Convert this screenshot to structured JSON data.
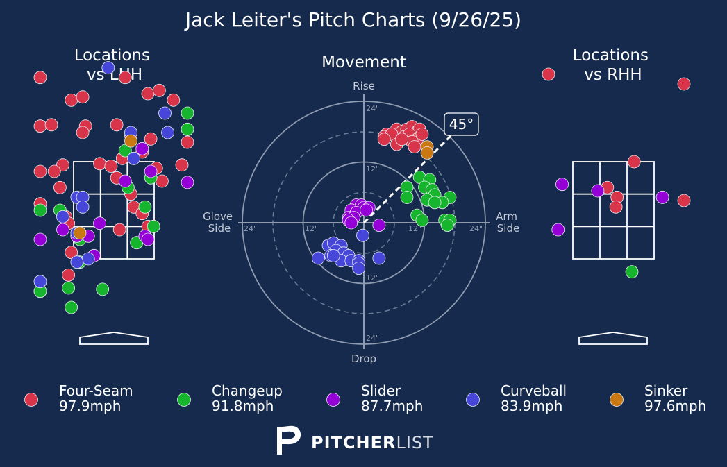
{
  "title": "Jack Leiter's Pitch Charts (9/26/25)",
  "colors": {
    "background": "#152a4c",
    "four_seam": "#d8344a",
    "changeup": "#16b52d",
    "slider": "#9400d6",
    "curveball": "#4646d8",
    "sinker": "#c97812"
  },
  "chart_data": [
    {
      "type": "scatter",
      "title": "Locations\nvs LHH",
      "points": [
        {
          "pitch": "Four-Seam",
          "x": -1.4,
          "y": 4.3
        },
        {
          "pitch": "Four-Seam",
          "x": -0.75,
          "y": 3.95
        },
        {
          "pitch": "Four-Seam",
          "x": -0.55,
          "y": 4.0
        },
        {
          "pitch": "Four-Seam",
          "x": 0.2,
          "y": 4.3
        },
        {
          "pitch": "Four-Seam",
          "x": 0.6,
          "y": 4.05
        },
        {
          "pitch": "Four-Seam",
          "x": 0.8,
          "y": 4.1
        },
        {
          "pitch": "Four-Seam",
          "x": 1.05,
          "y": 3.95
        },
        {
          "pitch": "Four-Seam",
          "x": -1.8,
          "y": 3.55
        },
        {
          "pitch": "Four-Seam",
          "x": -1.1,
          "y": 3.57
        },
        {
          "pitch": "Four-Seam",
          "x": -0.5,
          "y": 3.55
        },
        {
          "pitch": "Four-Seam",
          "x": 0.05,
          "y": 3.57
        },
        {
          "pitch": "Four-Seam",
          "x": 0.3,
          "y": 3.4
        },
        {
          "pitch": "Four-Seam",
          "x": 0.65,
          "y": 3.35
        },
        {
          "pitch": "Four-Seam",
          "x": 1.45,
          "y": 3.3
        },
        {
          "pitch": "Four-Seam",
          "x": -0.55,
          "y": 3.45
        },
        {
          "pitch": "Four-Seam",
          "x": 0.15,
          "y": 3.05
        },
        {
          "pitch": "Four-Seam",
          "x": -0.9,
          "y": 2.95
        },
        {
          "pitch": "Four-Seam",
          "x": -0.25,
          "y": 2.97
        },
        {
          "pitch": "Four-Seam",
          "x": -0.05,
          "y": 2.93
        },
        {
          "pitch": "Four-Seam",
          "x": 0.5,
          "y": 3.15
        },
        {
          "pitch": "Four-Seam",
          "x": 1.2,
          "y": 2.95
        },
        {
          "pitch": "Four-Seam",
          "x": -1.3,
          "y": 2.85
        },
        {
          "pitch": "Four-Seam",
          "x": -1.05,
          "y": 2.85
        },
        {
          "pitch": "Four-Seam",
          "x": 0.05,
          "y": 2.75
        },
        {
          "pitch": "Four-Seam",
          "x": 0.75,
          "y": 2.9
        },
        {
          "pitch": "Four-Seam",
          "x": 0.85,
          "y": 2.7
        },
        {
          "pitch": "Four-Seam",
          "x": -0.95,
          "y": 2.6
        },
        {
          "pitch": "Four-Seam",
          "x": 0.3,
          "y": 2.5
        },
        {
          "pitch": "Four-Seam",
          "x": -2.05,
          "y": 2.35
        },
        {
          "pitch": "Four-Seam",
          "x": 0.35,
          "y": 2.3
        },
        {
          "pitch": "Four-Seam",
          "x": 0.5,
          "y": 2.2
        },
        {
          "pitch": "Four-Seam",
          "x": 0.6,
          "y": 2.0
        },
        {
          "pitch": "Four-Seam",
          "x": -0.85,
          "y": 2.15
        },
        {
          "pitch": "Four-Seam",
          "x": -0.8,
          "y": 2.05
        },
        {
          "pitch": "Four-Seam",
          "x": 0.1,
          "y": 1.95
        },
        {
          "pitch": "Four-Seam",
          "x": -0.75,
          "y": 1.6
        },
        {
          "pitch": "Four-Seam",
          "x": -0.8,
          "y": 1.25
        },
        {
          "pitch": "Changeup",
          "x": 0.2,
          "y": 3.17
        },
        {
          "pitch": "Changeup",
          "x": 1.85,
          "y": 3.75
        },
        {
          "pitch": "Changeup",
          "x": 1.8,
          "y": 3.5
        },
        {
          "pitch": "Changeup",
          "x": 0.65,
          "y": 2.75
        },
        {
          "pitch": "Changeup",
          "x": 0.25,
          "y": 2.6
        },
        {
          "pitch": "Changeup",
          "x": -1.7,
          "y": 2.25
        },
        {
          "pitch": "Changeup",
          "x": -0.95,
          "y": 2.25
        },
        {
          "pitch": "Changeup",
          "x": 0.55,
          "y": 2.3
        },
        {
          "pitch": "Changeup",
          "x": 0.7,
          "y": 2.0
        },
        {
          "pitch": "Changeup",
          "x": -0.6,
          "y": 1.8
        },
        {
          "pitch": "Changeup",
          "x": 0.4,
          "y": 1.75
        },
        {
          "pitch": "Changeup",
          "x": -0.6,
          "y": 1.45
        },
        {
          "pitch": "Changeup",
          "x": -1.55,
          "y": 1.0
        },
        {
          "pitch": "Changeup",
          "x": -1.3,
          "y": 1.0
        },
        {
          "pitch": "Changeup",
          "x": -0.8,
          "y": 1.05
        },
        {
          "pitch": "Changeup",
          "x": -0.2,
          "y": 1.03
        },
        {
          "pitch": "Changeup",
          "x": -0.75,
          "y": 0.75
        },
        {
          "pitch": "Slider",
          "x": 0.5,
          "y": 3.2
        },
        {
          "pitch": "Slider",
          "x": 0.65,
          "y": 2.85
        },
        {
          "pitch": "Slider",
          "x": 1.35,
          "y": 2.68
        },
        {
          "pitch": "Slider",
          "x": 0.2,
          "y": 2.7
        },
        {
          "pitch": "Slider",
          "x": -0.25,
          "y": 2.05
        },
        {
          "pitch": "Slider",
          "x": -0.9,
          "y": 1.95
        },
        {
          "pitch": "Slider",
          "x": -0.45,
          "y": 1.85
        },
        {
          "pitch": "Slider",
          "x": 0.55,
          "y": 1.85
        },
        {
          "pitch": "Slider",
          "x": 0.6,
          "y": 1.8
        },
        {
          "pitch": "Slider",
          "x": -0.35,
          "y": 1.55
        },
        {
          "pitch": "Slider",
          "x": -2.15,
          "y": 1.8
        },
        {
          "pitch": "Slider",
          "x": -0.65,
          "y": 1.85
        },
        {
          "pitch": "Curveball",
          "x": -0.1,
          "y": 4.45
        },
        {
          "pitch": "Curveball",
          "x": 0.9,
          "y": 3.75
        },
        {
          "pitch": "Curveball",
          "x": 0.95,
          "y": 3.45
        },
        {
          "pitch": "Curveball",
          "x": 0.3,
          "y": 3.45
        },
        {
          "pitch": "Curveball",
          "x": 0.35,
          "y": 3.05
        },
        {
          "pitch": "Curveball",
          "x": -0.65,
          "y": 2.45
        },
        {
          "pitch": "Curveball",
          "x": -0.55,
          "y": 2.45
        },
        {
          "pitch": "Curveball",
          "x": -0.55,
          "y": 2.3
        },
        {
          "pitch": "Curveball",
          "x": -0.9,
          "y": 2.15
        },
        {
          "pitch": "Curveball",
          "x": -0.65,
          "y": 1.9
        },
        {
          "pitch": "Curveball",
          "x": -0.45,
          "y": 1.5
        },
        {
          "pitch": "Curveball",
          "x": -1.45,
          "y": 1.15
        },
        {
          "pitch": "Curveball",
          "x": -0.65,
          "y": 1.45
        },
        {
          "pitch": "Sinker",
          "x": 0.3,
          "y": 3.32
        },
        {
          "pitch": "Sinker",
          "x": -0.6,
          "y": 1.9
        }
      ]
    },
    {
      "type": "scatter",
      "title": "Movement",
      "polar": true,
      "labels": {
        "top": "Rise",
        "bottom": "Drop",
        "left": "Glove\nSide",
        "right": "Arm\nSide"
      },
      "rings": [
        "12\"",
        "24\""
      ],
      "arm_angle": "45°",
      "points": [
        {
          "pitch": "Four-Seam",
          "x": 4.5,
          "y": 17.5
        },
        {
          "pitch": "Four-Seam",
          "x": 6.5,
          "y": 18.5
        },
        {
          "pitch": "Four-Seam",
          "x": 7.5,
          "y": 18.0
        },
        {
          "pitch": "Four-Seam",
          "x": 8.5,
          "y": 18.5
        },
        {
          "pitch": "Four-Seam",
          "x": 9.5,
          "y": 19.0
        },
        {
          "pitch": "Four-Seam",
          "x": 10.5,
          "y": 18.0
        },
        {
          "pitch": "Four-Seam",
          "x": 11.0,
          "y": 18.5
        },
        {
          "pitch": "Four-Seam",
          "x": 4.0,
          "y": 17.0
        },
        {
          "pitch": "Four-Seam",
          "x": 5.5,
          "y": 17.5
        },
        {
          "pitch": "Four-Seam",
          "x": 8.0,
          "y": 17.0
        },
        {
          "pitch": "Four-Seam",
          "x": 9.0,
          "y": 17.5
        },
        {
          "pitch": "Four-Seam",
          "x": 10.5,
          "y": 16.5
        },
        {
          "pitch": "Four-Seam",
          "x": 4.0,
          "y": 16.5
        },
        {
          "pitch": "Four-Seam",
          "x": 6.5,
          "y": 15.5
        },
        {
          "pitch": "Four-Seam",
          "x": 9.5,
          "y": 16.0
        },
        {
          "pitch": "Four-Seam",
          "x": 11.5,
          "y": 17.5
        },
        {
          "pitch": "Four-Seam",
          "x": 10.0,
          "y": 15.0
        },
        {
          "pitch": "Four-Seam",
          "x": 7.5,
          "y": 16.5
        },
        {
          "pitch": "Sinker",
          "x": 12.5,
          "y": 15.0
        },
        {
          "pitch": "Sinker",
          "x": 12.5,
          "y": 13.8
        },
        {
          "pitch": "Changeup",
          "x": 11.0,
          "y": 9.0
        },
        {
          "pitch": "Changeup",
          "x": 8.5,
          "y": 7.0
        },
        {
          "pitch": "Changeup",
          "x": 13.0,
          "y": 8.5
        },
        {
          "pitch": "Changeup",
          "x": 12.0,
          "y": 7.0
        },
        {
          "pitch": "Changeup",
          "x": 13.5,
          "y": 6.5
        },
        {
          "pitch": "Changeup",
          "x": 14.0,
          "y": 5.5
        },
        {
          "pitch": "Changeup",
          "x": 17.0,
          "y": 5.0
        },
        {
          "pitch": "Changeup",
          "x": 12.5,
          "y": 4.5
        },
        {
          "pitch": "Changeup",
          "x": 15.5,
          "y": 4.0
        },
        {
          "pitch": "Changeup",
          "x": 14.0,
          "y": 4.0
        },
        {
          "pitch": "Changeup",
          "x": 8.5,
          "y": 5.0
        },
        {
          "pitch": "Changeup",
          "x": 10.5,
          "y": 1.5
        },
        {
          "pitch": "Changeup",
          "x": 11.5,
          "y": 0.5
        },
        {
          "pitch": "Changeup",
          "x": 16.0,
          "y": 0.5
        },
        {
          "pitch": "Changeup",
          "x": 17.0,
          "y": 0.5
        },
        {
          "pitch": "Changeup",
          "x": 16.5,
          "y": -0.5
        },
        {
          "pitch": "Slider",
          "x": -1.5,
          "y": 3.5
        },
        {
          "pitch": "Slider",
          "x": -0.5,
          "y": 3.5
        },
        {
          "pitch": "Slider",
          "x": 0.0,
          "y": 3.0
        },
        {
          "pitch": "Slider",
          "x": 1.0,
          "y": 3.0
        },
        {
          "pitch": "Slider",
          "x": -2.5,
          "y": 2.5
        },
        {
          "pitch": "Slider",
          "x": -1.5,
          "y": 2.0
        },
        {
          "pitch": "Slider",
          "x": -3.0,
          "y": 1.0
        },
        {
          "pitch": "Slider",
          "x": -2.0,
          "y": 1.0
        },
        {
          "pitch": "Slider",
          "x": -3.0,
          "y": 0.5
        },
        {
          "pitch": "Slider",
          "x": -2.5,
          "y": 0.0
        },
        {
          "pitch": "Slider",
          "x": 3.0,
          "y": -0.5
        },
        {
          "pitch": "Slider",
          "x": 0.5,
          "y": 2.5
        },
        {
          "pitch": "Curveball",
          "x": -0.2,
          "y": -2.5
        },
        {
          "pitch": "Curveball",
          "x": -7.0,
          "y": -4.5
        },
        {
          "pitch": "Curveball",
          "x": -6.0,
          "y": -4.0
        },
        {
          "pitch": "Curveball",
          "x": -4.5,
          "y": -4.5
        },
        {
          "pitch": "Curveball",
          "x": -5.5,
          "y": -5.5
        },
        {
          "pitch": "Curveball",
          "x": -4.0,
          "y": -6.0
        },
        {
          "pitch": "Curveball",
          "x": -3.0,
          "y": -6.5
        },
        {
          "pitch": "Curveball",
          "x": -6.5,
          "y": -6.5
        },
        {
          "pitch": "Curveball",
          "x": -4.5,
          "y": -7.5
        },
        {
          "pitch": "Curveball",
          "x": -2.5,
          "y": -7.5
        },
        {
          "pitch": "Curveball",
          "x": -1.0,
          "y": -7.5
        },
        {
          "pitch": "Curveball",
          "x": -9.0,
          "y": -7.0
        },
        {
          "pitch": "Curveball",
          "x": -6.0,
          "y": -6.5
        },
        {
          "pitch": "Curveball",
          "x": -1.0,
          "y": -8.0
        },
        {
          "pitch": "Curveball",
          "x": -1.0,
          "y": -9.0
        },
        {
          "pitch": "Curveball",
          "x": 3.0,
          "y": -7.0
        }
      ]
    },
    {
      "type": "scatter",
      "title": "Locations\nvs RHH",
      "points": [
        {
          "pitch": "Four-Seam",
          "x": -1.7,
          "y": 4.35
        },
        {
          "pitch": "Four-Seam",
          "x": 1.6,
          "y": 4.2
        },
        {
          "pitch": "Four-Seam",
          "x": 0.37,
          "y": 3.0
        },
        {
          "pitch": "Four-Seam",
          "x": 2.0,
          "y": 2.4
        },
        {
          "pitch": "Four-Seam",
          "x": -0.1,
          "y": 2.6
        },
        {
          "pitch": "Four-Seam",
          "x": 0.07,
          "y": 2.45
        },
        {
          "pitch": "Four-Seam",
          "x": 0.05,
          "y": 2.3
        },
        {
          "pitch": "Changeup",
          "x": 0.33,
          "y": 1.3
        },
        {
          "pitch": "Slider",
          "x": -0.9,
          "y": 2.65
        },
        {
          "pitch": "Slider",
          "x": -0.27,
          "y": 2.55
        },
        {
          "pitch": "Slider",
          "x": 0.87,
          "y": 2.45
        },
        {
          "pitch": "Slider",
          "x": -0.97,
          "y": 1.95
        }
      ]
    }
  ],
  "legend": [
    {
      "name": "Four-Seam",
      "speed": "97.9mph"
    },
    {
      "name": "Changeup",
      "speed": "91.8mph"
    },
    {
      "name": "Slider",
      "speed": "87.7mph"
    },
    {
      "name": "Curveball",
      "speed": "83.9mph"
    },
    {
      "name": "Sinker",
      "speed": "97.6mph"
    }
  ],
  "logo": {
    "bold": "PITCHER",
    "light": "LIST"
  }
}
